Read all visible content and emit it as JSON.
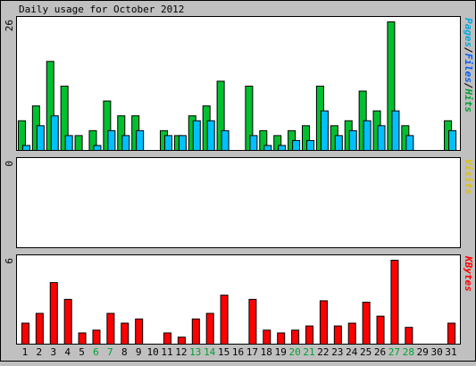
{
  "title": "Daily usage for October 2012",
  "colors": {
    "background": "#c0c0c0",
    "plot_background": "#ffffff",
    "border": "#000000",
    "hits": "#00c030",
    "files": "#00c0ff",
    "pages": "#00c0ff",
    "visits": "#ffff00",
    "kbytes": "#ff0000",
    "weekday_label": "#000000",
    "weekend_label": "#00a030"
  },
  "legend": {
    "top": {
      "parts": [
        {
          "text": "Pages",
          "color": "#00a8e0"
        },
        {
          "text": "/",
          "color": "#000000"
        },
        {
          "text": "Files",
          "color": "#0060ff"
        },
        {
          "text": "/",
          "color": "#000000"
        },
        {
          "text": "Hits",
          "color": "#00a030"
        }
      ]
    },
    "middle": {
      "parts": [
        {
          "text": "Visits",
          "color": "#e0c000"
        }
      ]
    },
    "bottom": {
      "parts": [
        {
          "text": "KBytes",
          "color": "#ff0000"
        }
      ]
    }
  },
  "chart_data": {
    "type": "bar",
    "title": "Daily usage for October 2012",
    "x_weekend_days": [
      6,
      7,
      13,
      14,
      20,
      21,
      27,
      28
    ],
    "panels": [
      {
        "name": "Pages/Files/Hits",
        "axis_max_label": "26",
        "ylim": [
          0,
          26
        ],
        "series": [
          {
            "name": "Hits",
            "values": [
              6,
              9,
              18,
              13,
              3,
              4,
              10,
              7,
              7,
              0,
              4,
              3,
              7,
              9,
              14,
              0,
              13,
              4,
              3,
              4,
              5,
              13,
              5,
              6,
              12,
              8,
              26,
              5,
              0,
              0,
              6
            ]
          },
          {
            "name": "Files",
            "values": [
              1,
              5,
              7,
              3,
              0,
              1,
              4,
              3,
              4,
              0,
              3,
              3,
              6,
              6,
              4,
              0,
              3,
              1,
              1,
              2,
              2,
              8,
              3,
              4,
              6,
              5,
              8,
              3,
              0,
              0,
              4
            ]
          }
        ]
      },
      {
        "name": "Visits",
        "axis_max_label": "0",
        "ylim": [
          0,
          1
        ],
        "series": [
          {
            "name": "Visits",
            "values": [
              0,
              0,
              0,
              0,
              0,
              0,
              0,
              0,
              0,
              0,
              0,
              0,
              0,
              0,
              0,
              0,
              0,
              0,
              0,
              0,
              0,
              0,
              0,
              0,
              0,
              0,
              0,
              0,
              0,
              0,
              0
            ]
          }
        ]
      },
      {
        "name": "KBytes",
        "axis_max_label": "6",
        "ylim": [
          0,
          6
        ],
        "series": [
          {
            "name": "KBytes",
            "values": [
              1.5,
              2.2,
              4.4,
              3.2,
              0.8,
              1.0,
              2.2,
              1.5,
              1.8,
              0.0,
              0.8,
              0.5,
              1.8,
              2.2,
              3.5,
              0.0,
              3.2,
              1.0,
              0.8,
              1.0,
              1.3,
              3.1,
              1.3,
              1.5,
              3.0,
              2.0,
              6.0,
              1.2,
              0.0,
              0.0,
              1.5
            ]
          }
        ]
      }
    ]
  }
}
